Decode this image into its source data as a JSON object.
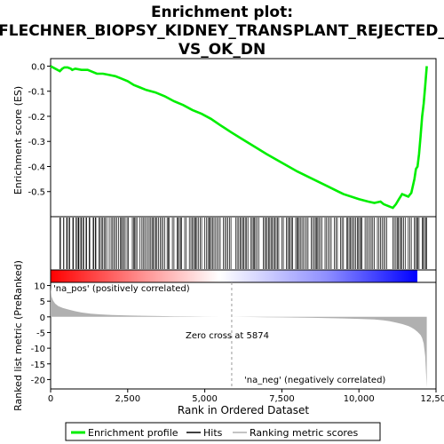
{
  "chart_data": [
    {
      "type": "line",
      "title_lines": [
        "Enrichment plot:",
        "FLECHNER_BIOPSY_KIDNEY_TRANSPLANT_REJECTED_",
        "VS_OK_DN"
      ],
      "ylabel": "Enrichment score (ES)",
      "ylim": [
        -0.6,
        0.03
      ],
      "xlim": [
        0,
        12500
      ],
      "yticks": [
        0.0,
        -0.1,
        -0.2,
        -0.3,
        -0.4,
        -0.5
      ],
      "ytick_labels": [
        "0.0",
        "-0.1",
        "-0.2",
        "-0.3",
        "-0.4",
        "-0.5"
      ],
      "grid": false,
      "series": [
        {
          "name": "Enrichment profile",
          "color": "#00ee00",
          "x": [
            0,
            150,
            300,
            380,
            450,
            550,
            650,
            700,
            800,
            1000,
            1200,
            1300,
            1500,
            1700,
            1900,
            2100,
            2300,
            2500,
            2700,
            2900,
            3100,
            3400,
            3700,
            4000,
            4300,
            4600,
            4900,
            5200,
            5500,
            5874,
            6200,
            6600,
            7000,
            7500,
            8000,
            8500,
            9000,
            9500,
            10000,
            10300,
            10500,
            10700,
            10800,
            11000,
            11100,
            11200,
            11300,
            11400,
            11500,
            11600,
            11700,
            11800,
            11850,
            11900,
            11950,
            12000,
            12050,
            12100,
            12150,
            12200
          ],
          "y": [
            0.0,
            -0.01,
            -0.02,
            -0.01,
            -0.005,
            -0.005,
            -0.01,
            -0.015,
            -0.01,
            -0.015,
            -0.015,
            -0.02,
            -0.03,
            -0.03,
            -0.035,
            -0.04,
            -0.05,
            -0.06,
            -0.075,
            -0.085,
            -0.095,
            -0.105,
            -0.12,
            -0.14,
            -0.155,
            -0.175,
            -0.19,
            -0.21,
            -0.235,
            -0.265,
            -0.29,
            -0.32,
            -0.35,
            -0.385,
            -0.42,
            -0.45,
            -0.48,
            -0.51,
            -0.53,
            -0.54,
            -0.545,
            -0.54,
            -0.55,
            -0.56,
            -0.565,
            -0.55,
            -0.53,
            -0.51,
            -0.515,
            -0.52,
            -0.505,
            -0.45,
            -0.41,
            -0.4,
            -0.35,
            -0.28,
            -0.2,
            -0.15,
            -0.08,
            0.0
          ]
        }
      ]
    },
    {
      "type": "hits",
      "name": "Hits",
      "color": "#000000",
      "segments": [
        [
          300,
          320
        ],
        [
          420,
          430
        ],
        [
          520,
          540
        ],
        [
          600,
          620
        ],
        [
          720,
          740
        ],
        [
          820,
          860
        ],
        [
          900,
          920
        ],
        [
          980,
          1000
        ],
        [
          1050,
          1070
        ],
        [
          1150,
          1170
        ],
        [
          1250,
          1270
        ],
        [
          1380,
          1400
        ],
        [
          1450,
          1470
        ],
        [
          1560,
          1820
        ],
        [
          1900,
          1960
        ],
        [
          2010,
          2050
        ],
        [
          2100,
          2140
        ],
        [
          2200,
          2260
        ],
        [
          2300,
          2330
        ],
        [
          2380,
          2420
        ],
        [
          2480,
          2520
        ],
        [
          2650,
          2800
        ],
        [
          2900,
          2960
        ],
        [
          3000,
          3050
        ],
        [
          3100,
          3200
        ],
        [
          3250,
          3450
        ],
        [
          3500,
          3600
        ],
        [
          3650,
          3700
        ],
        [
          3780,
          3850
        ],
        [
          3950,
          4000
        ],
        [
          4100,
          4250
        ],
        [
          4350,
          4400
        ],
        [
          4500,
          4550
        ],
        [
          4600,
          4750
        ],
        [
          4800,
          4900
        ],
        [
          5000,
          5050
        ],
        [
          5100,
          5250
        ],
        [
          5300,
          5400
        ],
        [
          5450,
          5500
        ],
        [
          5600,
          5700
        ],
        [
          5750,
          5850
        ],
        [
          6000,
          6050
        ],
        [
          6100,
          6400
        ],
        [
          6500,
          6650
        ],
        [
          6700,
          6750
        ],
        [
          6900,
          7400
        ],
        [
          7500,
          7550
        ],
        [
          7650,
          7850
        ],
        [
          7950,
          8100
        ],
        [
          8150,
          8250
        ],
        [
          8300,
          8350
        ],
        [
          8450,
          8500
        ],
        [
          8550,
          8700
        ],
        [
          8750,
          8800
        ],
        [
          8900,
          9000
        ],
        [
          9050,
          9100
        ],
        [
          9200,
          9300
        ],
        [
          9400,
          9500
        ],
        [
          9600,
          9800
        ],
        [
          9850,
          9900
        ],
        [
          9950,
          10100
        ],
        [
          10200,
          10300
        ],
        [
          10350,
          10400
        ],
        [
          10450,
          10500
        ],
        [
          10600,
          10700
        ],
        [
          10750,
          10800
        ],
        [
          10850,
          10900
        ],
        [
          11100,
          11150
        ],
        [
          11200,
          11400
        ],
        [
          11450,
          11500
        ],
        [
          11600,
          11700
        ],
        [
          11800,
          11950
        ],
        [
          12050,
          12200
        ]
      ]
    },
    {
      "type": "area",
      "ylabel": "Ranked list metric (PreRanked)",
      "xlabel": "Rank in Ordered Dataset",
      "xlim": [
        0,
        12500
      ],
      "ylim": [
        -23,
        11
      ],
      "yticks": [
        10,
        5,
        0,
        -5,
        -10,
        -15,
        -20
      ],
      "ytick_labels": [
        "10",
        "5",
        "0",
        "-5",
        "-10",
        "-15",
        "-20"
      ],
      "xticks": [
        0,
        2500,
        5000,
        7500,
        10000,
        12500
      ],
      "xtick_labels": [
        "0",
        "2,500",
        "5,000",
        "7,500",
        "10,000",
        "12,500"
      ],
      "series": [
        {
          "name": "Ranking metric scores",
          "color": "#b0b0b0",
          "x": [
            0,
            30,
            80,
            150,
            250,
            400,
            600,
            800,
            1000,
            1300,
            1600,
            2000,
            2500,
            3000,
            3500,
            4000,
            4500,
            5000,
            5500,
            5874,
            6500,
            7000,
            7500,
            8000,
            8500,
            9000,
            9500,
            10000,
            10500,
            10800,
            11000,
            11200,
            11400,
            11600,
            11700,
            11800,
            11900,
            12000,
            12050,
            12100,
            12150,
            12200
          ],
          "y": [
            9.5,
            6.5,
            5.2,
            4.2,
            3.4,
            2.8,
            2.3,
            1.8,
            1.4,
            1.0,
            0.8,
            0.6,
            0.45,
            0.35,
            0.25,
            0.18,
            0.12,
            0.07,
            0.03,
            0.0,
            -0.05,
            -0.1,
            -0.15,
            -0.22,
            -0.3,
            -0.4,
            -0.5,
            -0.65,
            -0.85,
            -1.1,
            -1.4,
            -1.8,
            -2.3,
            -2.9,
            -3.4,
            -4.0,
            -4.8,
            -5.8,
            -6.8,
            -8.5,
            -12.5,
            -22.5
          ]
        }
      ],
      "annotations": {
        "pos_label": "'na_pos' (positively correlated)",
        "neg_label": "'na_neg' (negatively correlated)",
        "zero_cross_label": "Zero cross at 5874",
        "zero_cross_x": 5874
      }
    }
  ],
  "legend": {
    "items": [
      {
        "label": "Enrichment profile",
        "color": "#00ee00"
      },
      {
        "label": "Hits",
        "color": "#000000"
      },
      {
        "label": "Ranking metric scores",
        "color": "#b0b0b0"
      }
    ]
  },
  "colors": {
    "pos_label": "#ff0000",
    "neg_label": "#0000cc",
    "zero_line": "#999999",
    "heat_pos": "#ff0000",
    "heat_mid": "#ffffff",
    "heat_neg": "#0000ff"
  }
}
